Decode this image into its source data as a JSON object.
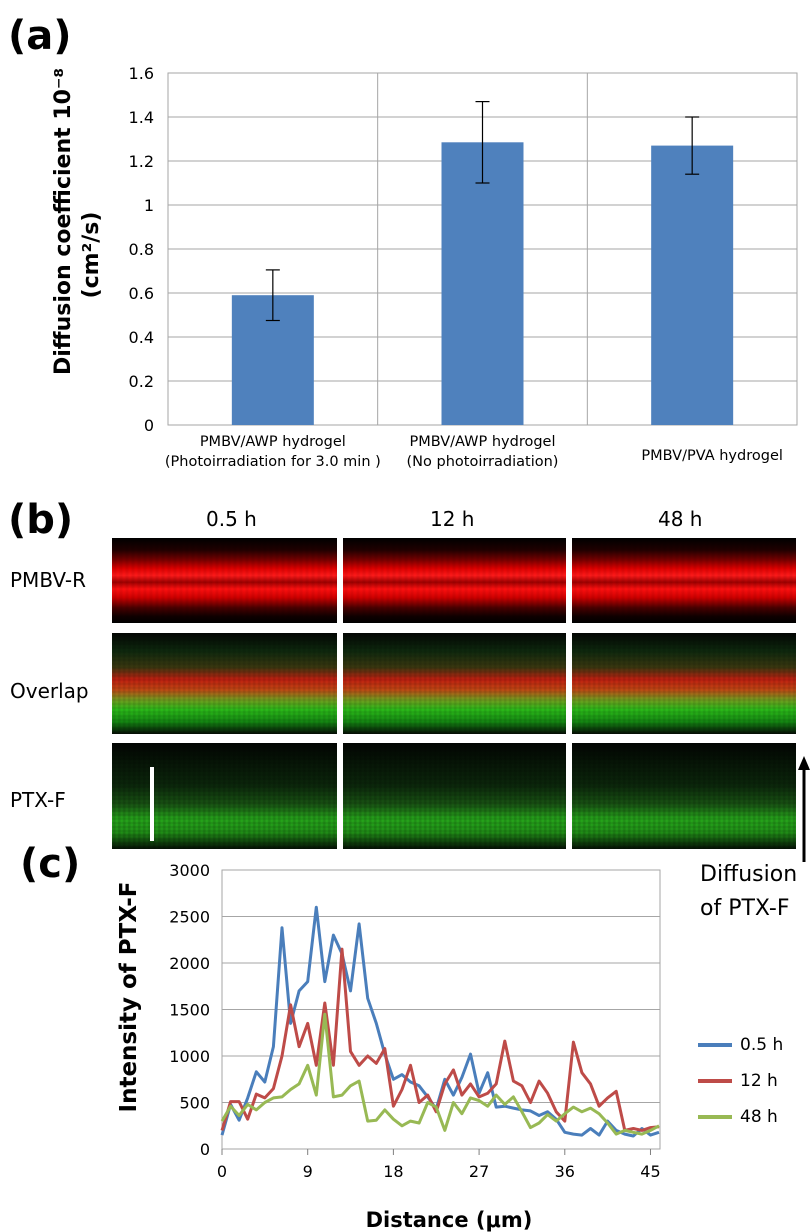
{
  "panel_labels": {
    "a": "(a)",
    "b": "(b)",
    "c": "(c)"
  },
  "colors": {
    "bar": "#4f81bd",
    "gridline": "#a6a6a6",
    "series_05h": "#4a7ebb",
    "series_12h": "#be4b48",
    "series_48h": "#98b954"
  },
  "chart_data": [
    {
      "type": "bar",
      "ylabel_line1": "Diffusion coefficient 10⁻⁸",
      "ylabel_line2": "(cm²/s)",
      "ylim": [
        0,
        1.6
      ],
      "yticks": [
        "0",
        "0.2",
        "0.4",
        "0.6",
        "0.8",
        "1",
        "1.2",
        "1.4",
        "1.6"
      ],
      "grid": true,
      "categories": [
        [
          "PMBV/AWP hydrogel",
          "(Photoirradiation for 3.0 min )"
        ],
        [
          "PMBV/AWP hydrogel",
          "(No photoirradiation)"
        ],
        [
          "PMBV/PVA hydrogel"
        ]
      ],
      "values": [
        0.59,
        1.285,
        1.27
      ],
      "errors": [
        0.115,
        0.185,
        0.13
      ]
    },
    {
      "type": "line",
      "xlabel": "Distance (μm)",
      "ylabel": "Intensity of PTX-F",
      "xlim": [
        0,
        46
      ],
      "ylim": [
        0,
        3000
      ],
      "xticks": [
        "0",
        "9",
        "18",
        "27",
        "36",
        "45"
      ],
      "yticks": [
        "0",
        "500",
        "1000",
        "1500",
        "2000",
        "2500",
        "3000"
      ],
      "legend_position": "right",
      "x": [
        0,
        0.9,
        1.8,
        2.7,
        3.6,
        4.5,
        5.4,
        6.3,
        7.2,
        8.1,
        9.0,
        9.9,
        10.8,
        11.7,
        12.6,
        13.5,
        14.4,
        15.3,
        16.2,
        17.1,
        18.0,
        18.9,
        19.8,
        20.7,
        21.6,
        22.5,
        23.4,
        24.3,
        25.2,
        26.1,
        27.0,
        27.9,
        28.8,
        29.7,
        30.6,
        31.5,
        32.4,
        33.3,
        34.2,
        35.1,
        36.0,
        36.9,
        37.8,
        38.7,
        39.6,
        40.5,
        41.4,
        42.3,
        43.2,
        44.1,
        45.0,
        45.9
      ],
      "series": [
        {
          "name": "0.5 h",
          "values": [
            150,
            480,
            310,
            550,
            830,
            720,
            1100,
            2380,
            1350,
            1700,
            1800,
            2600,
            1800,
            2300,
            2100,
            1700,
            2420,
            1620,
            1350,
            1020,
            750,
            800,
            720,
            680,
            560,
            430,
            750,
            580,
            770,
            1020,
            600,
            820,
            450,
            460,
            440,
            420,
            410,
            360,
            400,
            320,
            180,
            160,
            150,
            220,
            150,
            300,
            200,
            160,
            140,
            220,
            150,
            180
          ]
        },
        {
          "name": "12 h",
          "values": [
            200,
            510,
            510,
            320,
            590,
            550,
            650,
            1000,
            1550,
            1100,
            1350,
            900,
            1570,
            900,
            2150,
            1050,
            900,
            1000,
            920,
            1080,
            460,
            640,
            900,
            500,
            580,
            400,
            700,
            850,
            580,
            700,
            560,
            600,
            700,
            1160,
            730,
            680,
            500,
            730,
            600,
            400,
            300,
            1150,
            820,
            700,
            460,
            550,
            620,
            200,
            220,
            200,
            230,
            240
          ]
        },
        {
          "name": "48 h",
          "values": [
            300,
            460,
            360,
            480,
            420,
            500,
            550,
            560,
            640,
            700,
            900,
            580,
            1450,
            560,
            580,
            680,
            730,
            300,
            310,
            420,
            320,
            250,
            300,
            280,
            500,
            450,
            200,
            500,
            380,
            550,
            520,
            460,
            580,
            480,
            560,
            400,
            230,
            280,
            370,
            300,
            380,
            450,
            400,
            440,
            380,
            280,
            160,
            200,
            180,
            160,
            200,
            250
          ]
        }
      ]
    }
  ],
  "panel_b": {
    "timepoints": [
      "0.5 h",
      "12 h",
      "48 h"
    ],
    "rows": [
      "PMBV-R",
      "Overlap",
      "PTX-F"
    ]
  },
  "side_note": {
    "line1": "Diffusion",
    "line2": "of PTX-F"
  }
}
